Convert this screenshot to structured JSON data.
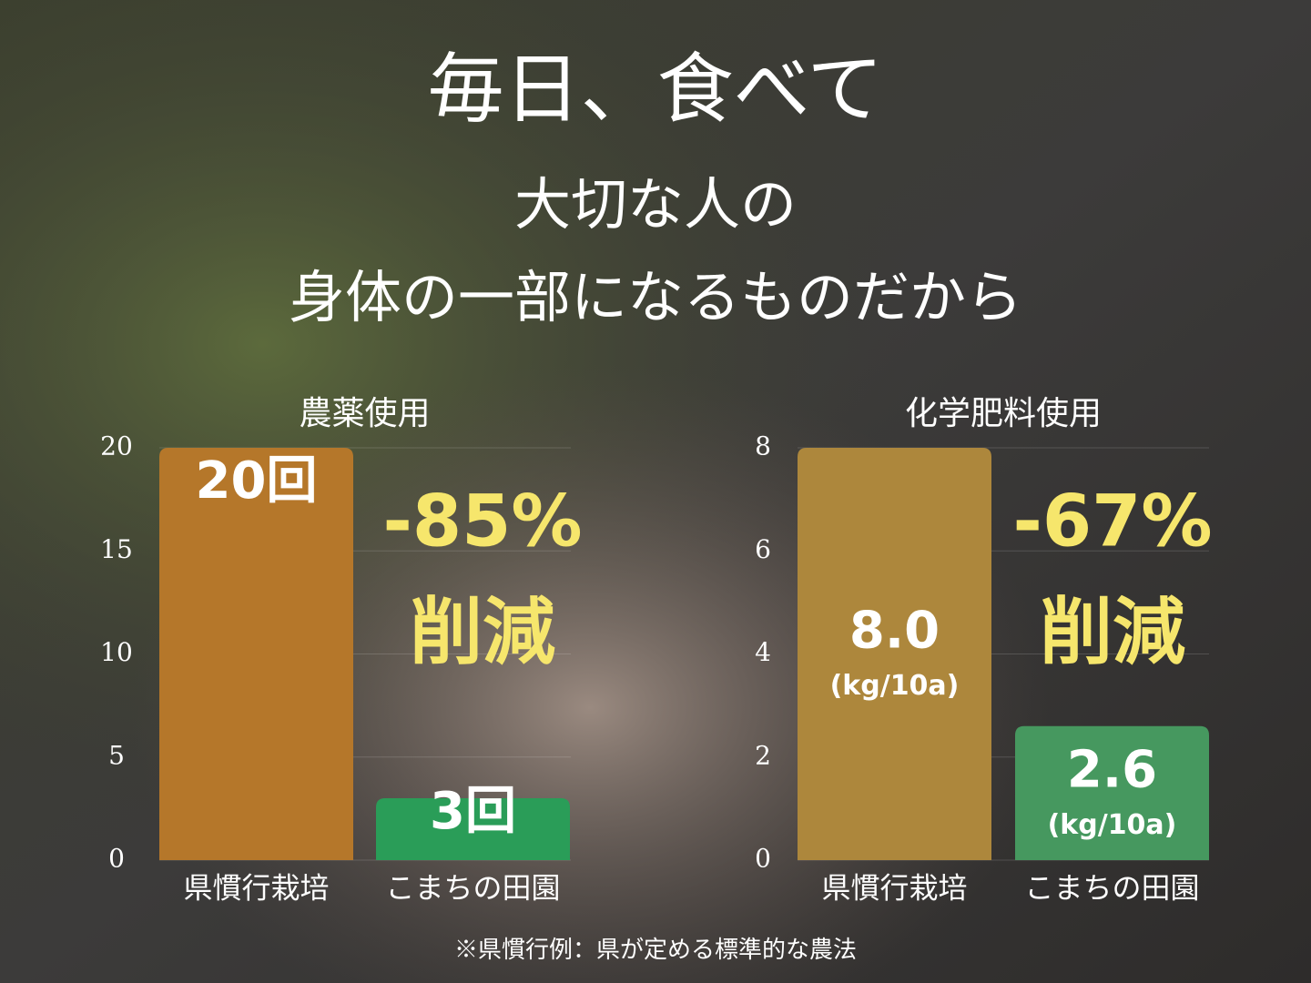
{
  "headline": [
    "毎日、食べて",
    "大切な人の",
    "身体の一部になるものだから"
  ],
  "footnote": "※県慣行例：県が定める標準的な農法",
  "chart_data": [
    {
      "type": "bar",
      "title": "農薬使用",
      "categories": [
        "県慣行栽培",
        "こまちの田園"
      ],
      "values": [
        20,
        3
      ],
      "value_labels": [
        "20回",
        "3回"
      ],
      "colors": [
        "#b5772a",
        "#2a9d58"
      ],
      "ylim": [
        0,
        20
      ],
      "yticks": [
        0,
        5,
        10,
        15,
        20
      ],
      "grid": true,
      "annotations": [
        "-85%",
        "削減"
      ]
    },
    {
      "type": "bar",
      "title": "化学肥料使用",
      "categories": [
        "県慣行栽培",
        "こまちの田園"
      ],
      "values": [
        8.0,
        2.6
      ],
      "value_labels": [
        "8.0",
        "2.6"
      ],
      "unit": "(kg/10a)",
      "colors": [
        "#ad873c",
        "#46985f"
      ],
      "ylim": [
        0,
        8
      ],
      "yticks": [
        0,
        2,
        4,
        6,
        8
      ],
      "grid": true,
      "annotations": [
        "-67%",
        "削減"
      ]
    }
  ]
}
